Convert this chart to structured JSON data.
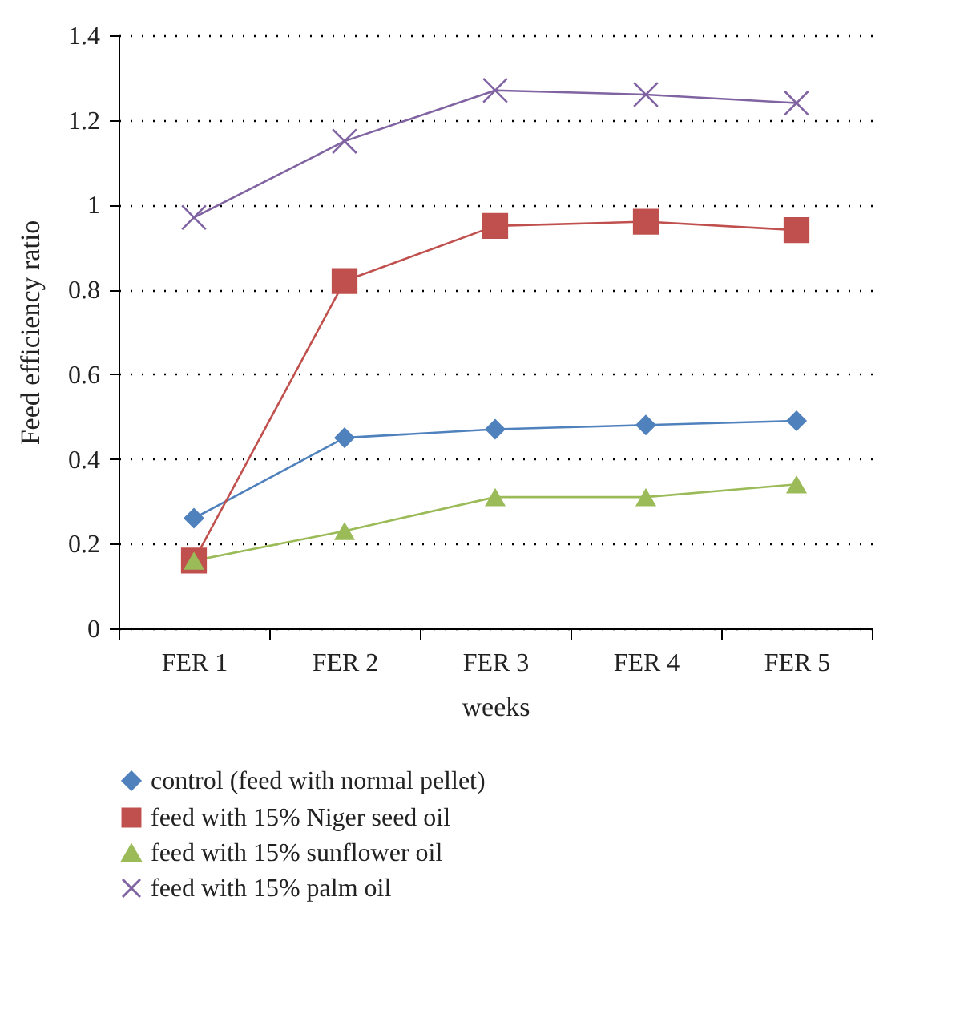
{
  "chart_data": {
    "type": "line",
    "xlabel": "weeks",
    "ylabel": "Feed efficiency ratio",
    "categories": [
      "FER 1",
      "FER 2",
      "FER 3",
      "FER 4",
      "FER 5"
    ],
    "series": [
      {
        "name": "control (feed with normal pellet)",
        "color": "#4f81bd",
        "marker": "diamond",
        "values": [
          0.26,
          0.45,
          0.47,
          0.48,
          0.49
        ]
      },
      {
        "name": "feed with 15% Niger seed oil",
        "color": "#c0504d",
        "marker": "square",
        "values": [
          0.16,
          0.82,
          0.95,
          0.96,
          0.94
        ]
      },
      {
        "name": "feed with 15% sunflower oil",
        "color": "#9bbb59",
        "marker": "triangle",
        "values": [
          0.16,
          0.23,
          0.31,
          0.31,
          0.34
        ]
      },
      {
        "name": "feed with 15% palm oil",
        "color": "#8064a2",
        "marker": "cross",
        "values": [
          0.97,
          1.15,
          1.27,
          1.26,
          1.24
        ]
      }
    ],
    "ylim": [
      0,
      1.4
    ],
    "yticks": [
      0,
      0.2,
      0.4,
      0.6,
      0.8,
      1,
      1.2,
      1.4
    ],
    "grid": "y",
    "legend": "bottom",
    "line_style": "solid"
  }
}
